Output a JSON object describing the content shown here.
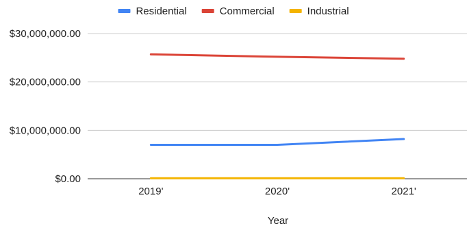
{
  "chart_data": {
    "type": "line",
    "categories": [
      "2019'",
      "2020'",
      "2021'"
    ],
    "series": [
      {
        "name": "Residential",
        "color": "#4285f4",
        "values": [
          7000000,
          7000000,
          8200000
        ]
      },
      {
        "name": "Commercial",
        "color": "#db4437",
        "values": [
          25700000,
          25200000,
          24800000
        ]
      },
      {
        "name": "Industrial",
        "color": "#f4b400",
        "values": [
          100000,
          100000,
          100000
        ]
      }
    ],
    "xlabel": "Year",
    "ylabel": "",
    "ylim": [
      0,
      30000000
    ],
    "yticks": [
      {
        "value": 0,
        "label": "$0.00"
      },
      {
        "value": 10000000,
        "label": "$10,000,000.00"
      },
      {
        "value": 20000000,
        "label": "$20,000,000.00"
      },
      {
        "value": 30000000,
        "label": "$30,000,000.00"
      }
    ],
    "grid": true,
    "legend_position": "top-center"
  }
}
